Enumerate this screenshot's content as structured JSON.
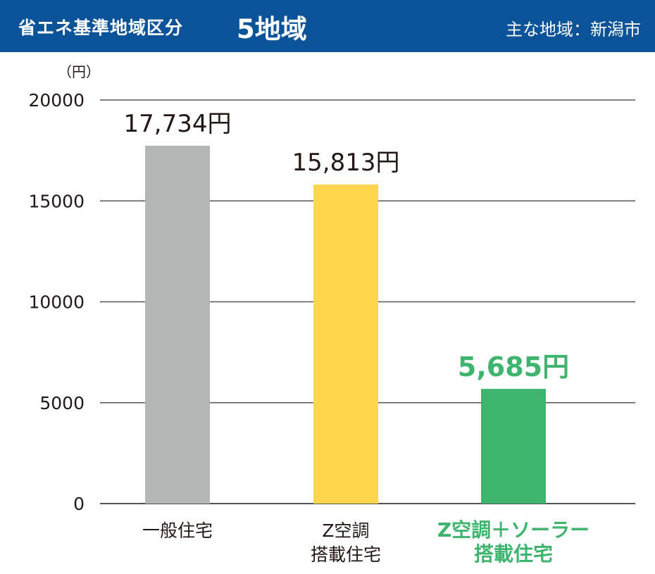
{
  "header": {
    "title": "省エネ基準地域区分",
    "region": "5地域",
    "area": "主な地域：新潟市"
  },
  "colors": {
    "header_bg": "#0a5399",
    "accent_green": "#3fb46e"
  },
  "chart_data": {
    "type": "bar",
    "unit_label": "（円）",
    "ylim": [
      0,
      20000
    ],
    "yticks": [
      0,
      5000,
      10000,
      15000,
      20000
    ],
    "grid": true,
    "categories": [
      {
        "lines": [
          "一般住宅"
        ],
        "value": 17734,
        "value_label": "17,734円",
        "color": "#b4b5b5",
        "highlight": false
      },
      {
        "lines": [
          "Z空調",
          "搭載住宅"
        ],
        "value": 15813,
        "value_label": "15,813円",
        "color": "#fdd64e",
        "highlight": false
      },
      {
        "lines": [
          "Z空調＋ソーラー",
          "搭載住宅"
        ],
        "value": 5685,
        "value_label": "5,685円",
        "color": "#3fb46e",
        "highlight": true
      }
    ]
  }
}
